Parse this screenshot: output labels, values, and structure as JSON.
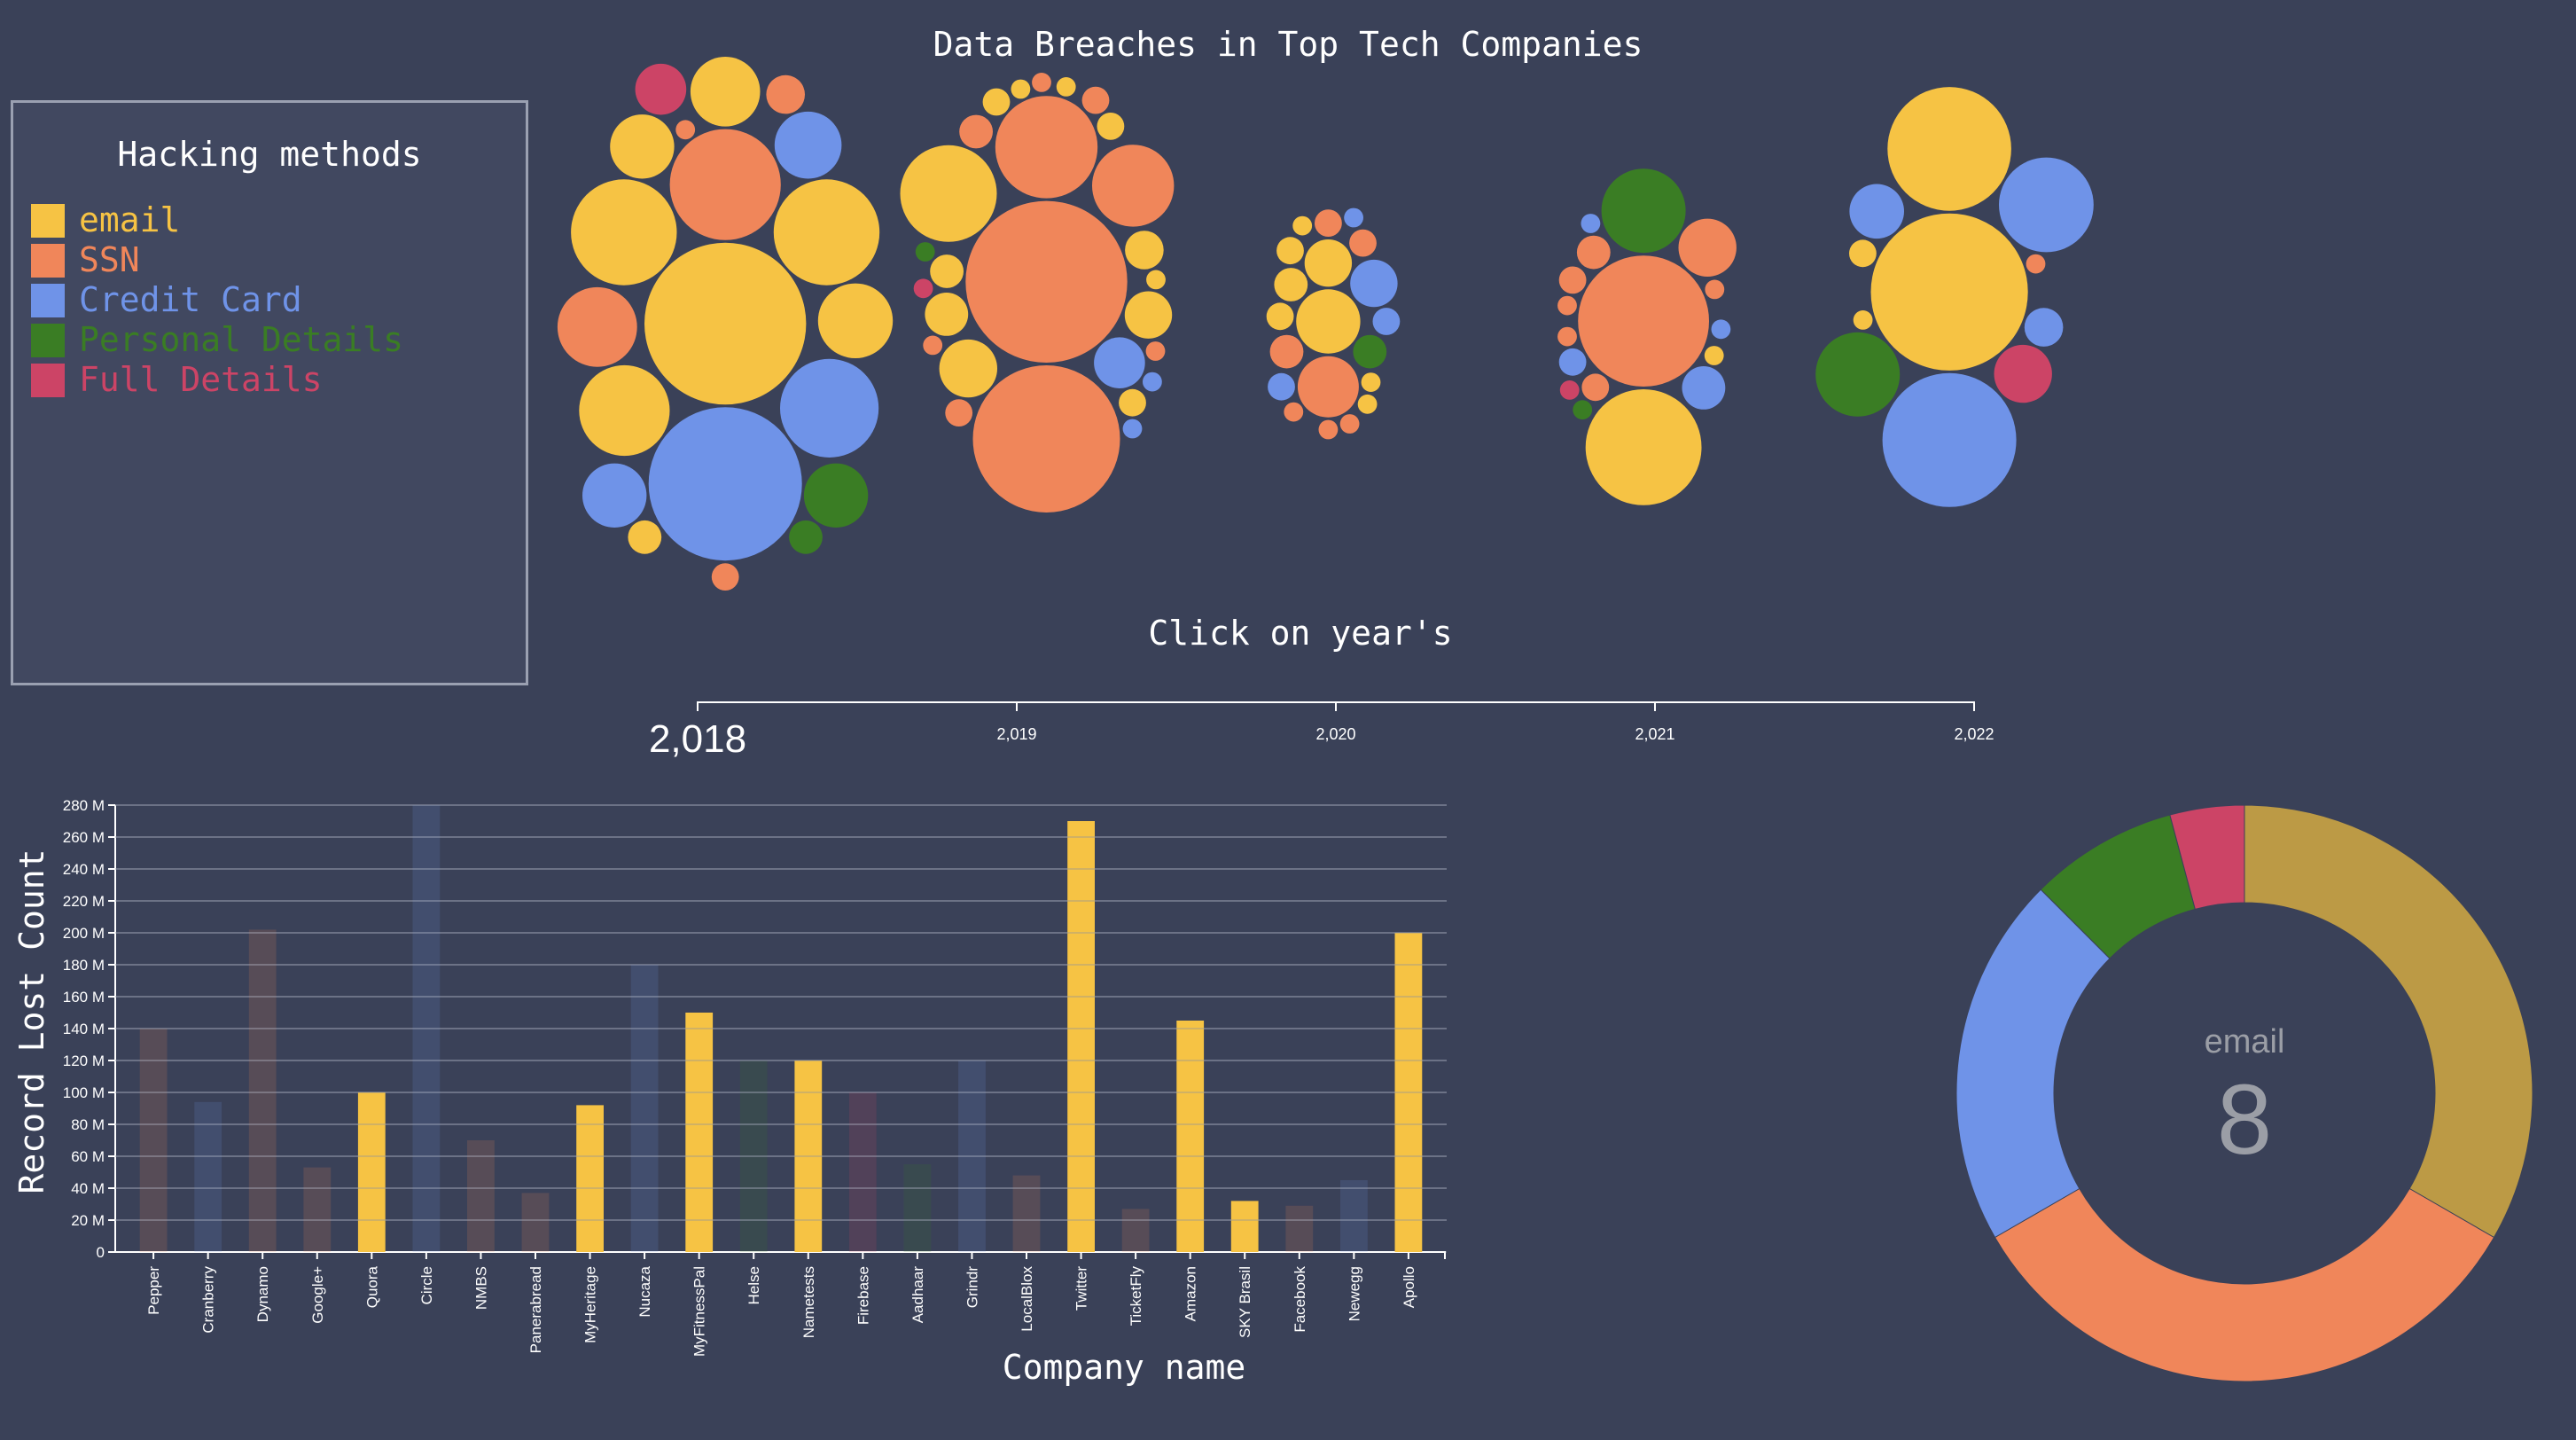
{
  "page": {
    "title": "Data Breaches in Top Tech Companies"
  },
  "legend": {
    "title": "Hacking methods",
    "items": [
      {
        "label": "email",
        "color": "#f6c344"
      },
      {
        "label": "SSN",
        "color": "#f0865a"
      },
      {
        "label": "Credit Card",
        "color": "#6f93e8"
      },
      {
        "label": "Personal Details",
        "color": "#3a7d24"
      },
      {
        "label": "Full Details",
        "color": "#cc4466"
      }
    ]
  },
  "timeline": {
    "hint": "Click on year's",
    "years": [
      "2,018",
      "2,019",
      "2,020",
      "2,021",
      "2,022"
    ],
    "selected": "2,018"
  },
  "chart_data": [
    {
      "type": "scatter",
      "title": "",
      "subtype": "packed-bubble",
      "groups": [
        {
          "year": "2,018",
          "bubbles": [
            {
              "method": "email",
              "size": 70
            },
            {
              "method": "email",
              "size": 30
            },
            {
              "method": "email",
              "size": 30
            },
            {
              "method": "email",
              "size": 22
            },
            {
              "method": "email",
              "size": 15
            },
            {
              "method": "email",
              "size": 13
            },
            {
              "method": "email",
              "size": 11
            },
            {
              "method": "email",
              "size": 3
            },
            {
              "method": "SSN",
              "size": 33
            },
            {
              "method": "SSN",
              "size": 17
            },
            {
              "method": "SSN",
              "size": 4
            },
            {
              "method": "SSN",
              "size": 2
            },
            {
              "method": "SSN",
              "size": 1
            },
            {
              "method": "Credit Card",
              "size": 63
            },
            {
              "method": "Credit Card",
              "size": 26
            },
            {
              "method": "Credit Card",
              "size": 12
            },
            {
              "method": "Credit Card",
              "size": 11
            },
            {
              "method": "Personal Details",
              "size": 11
            },
            {
              "method": "Personal Details",
              "size": 3
            },
            {
              "method": "Full Details",
              "size": 7
            }
          ]
        },
        {
          "year": "2,019",
          "bubbles": [
            {
              "method": "email",
              "size": 25
            },
            {
              "method": "email",
              "size": 9
            },
            {
              "method": "email",
              "size": 6
            },
            {
              "method": "email",
              "size": 5
            },
            {
              "method": "email",
              "size": 4
            },
            {
              "method": "email",
              "size": 3
            },
            {
              "method": "email",
              "size": 2
            },
            {
              "method": "email",
              "size": 2
            },
            {
              "method": "email",
              "size": 2
            },
            {
              "method": "email",
              "size": 1
            },
            {
              "method": "email",
              "size": 1
            },
            {
              "method": "email",
              "size": 1
            },
            {
              "method": "SSN",
              "size": 70
            },
            {
              "method": "SSN",
              "size": 58
            },
            {
              "method": "SSN",
              "size": 28
            },
            {
              "method": "SSN",
              "size": 18
            },
            {
              "method": "SSN",
              "size": 3
            },
            {
              "method": "SSN",
              "size": 2
            },
            {
              "method": "SSN",
              "size": 2
            },
            {
              "method": "SSN",
              "size": 1
            },
            {
              "method": "SSN",
              "size": 1
            },
            {
              "method": "SSN",
              "size": 1
            },
            {
              "method": "Credit Card",
              "size": 7
            },
            {
              "method": "Credit Card",
              "size": 1
            },
            {
              "method": "Credit Card",
              "size": 1
            },
            {
              "method": "Personal Details",
              "size": 1
            },
            {
              "method": "Full Details",
              "size": 1
            }
          ]
        },
        {
          "year": "2,020",
          "bubbles": [
            {
              "method": "email",
              "size": 11
            },
            {
              "method": "email",
              "size": 6
            },
            {
              "method": "email",
              "size": 3
            },
            {
              "method": "email",
              "size": 2
            },
            {
              "method": "email",
              "size": 2
            },
            {
              "method": "email",
              "size": 1
            },
            {
              "method": "email",
              "size": 1
            },
            {
              "method": "email",
              "size": 1
            },
            {
              "method": "SSN",
              "size": 10
            },
            {
              "method": "SSN",
              "size": 3
            },
            {
              "method": "SSN",
              "size": 2
            },
            {
              "method": "SSN",
              "size": 2
            },
            {
              "method": "SSN",
              "size": 1
            },
            {
              "method": "SSN",
              "size": 1
            },
            {
              "method": "SSN",
              "size": 1
            },
            {
              "method": "Credit Card",
              "size": 6
            },
            {
              "method": "Credit Card",
              "size": 2
            },
            {
              "method": "Credit Card",
              "size": 2
            },
            {
              "method": "Credit Card",
              "size": 1
            },
            {
              "method": "Personal Details",
              "size": 3
            }
          ]
        },
        {
          "year": "2,021",
          "bubbles": [
            {
              "method": "email",
              "size": 36
            },
            {
              "method": "email",
              "size": 1
            },
            {
              "method": "SSN",
              "size": 46
            },
            {
              "method": "SSN",
              "size": 9
            },
            {
              "method": "SSN",
              "size": 3
            },
            {
              "method": "SSN",
              "size": 2
            },
            {
              "method": "SSN",
              "size": 2
            },
            {
              "method": "SSN",
              "size": 1
            },
            {
              "method": "SSN",
              "size": 1
            },
            {
              "method": "SSN",
              "size": 1
            },
            {
              "method": "Credit Card",
              "size": 5
            },
            {
              "method": "Credit Card",
              "size": 2
            },
            {
              "method": "Credit Card",
              "size": 1
            },
            {
              "method": "Credit Card",
              "size": 1
            },
            {
              "method": "Personal Details",
              "size": 19
            },
            {
              "method": "Personal Details",
              "size": 1
            },
            {
              "method": "Full Details",
              "size": 1
            }
          ]
        },
        {
          "year": "2,022",
          "bubbles": [
            {
              "method": "email",
              "size": 66
            },
            {
              "method": "email",
              "size": 41
            },
            {
              "method": "email",
              "size": 2
            },
            {
              "method": "email",
              "size": 1
            },
            {
              "method": "SSN",
              "size": 1
            },
            {
              "method": "Credit Card",
              "size": 48
            },
            {
              "method": "Credit Card",
              "size": 24
            },
            {
              "method": "Credit Card",
              "size": 8
            },
            {
              "method": "Credit Card",
              "size": 4
            },
            {
              "method": "Personal Details",
              "size": 19
            },
            {
              "method": "Full Details",
              "size": 9
            }
          ]
        }
      ]
    },
    {
      "type": "bar",
      "title": "",
      "xlabel": "Company name",
      "ylabel": "Record Lost Count",
      "ylim": [
        0,
        280000000
      ],
      "yticks": [
        "0",
        "20 M",
        "40 M",
        "60 M",
        "80 M",
        "100 M",
        "120 M",
        "140 M",
        "160 M",
        "180 M",
        "200 M",
        "220 M",
        "240 M",
        "260 M",
        "280 M"
      ],
      "categories": [
        "Pepper",
        "Cranberry",
        "Dynamo",
        "Google+",
        "Quora",
        "Circle",
        "NMBS",
        "Panerabread",
        "MyHeritage",
        "Nucaza",
        "MyFitnessPal",
        "Helse",
        "Nametests",
        "Firebase",
        "Aadhaar",
        "Grindr",
        "LocalBlox",
        "Twitter",
        "TicketFly",
        "Amazon",
        "SKY Brasil",
        "Facebook",
        "Newegg",
        "Apollo"
      ],
      "values": [
        140000000,
        94000000,
        202000000,
        53000000,
        100000000,
        280000000,
        70000000,
        37000000,
        92000000,
        180000000,
        150000000,
        120000000,
        120000000,
        100000000,
        55000000,
        120000000,
        48000000,
        270000000,
        27000000,
        145000000,
        32000000,
        29000000,
        45000000,
        200000000
      ],
      "methods": [
        "SSN",
        "Credit Card",
        "SSN",
        "SSN",
        "email",
        "Credit Card",
        "SSN",
        "SSN",
        "email",
        "Credit Card",
        "email",
        "Personal Details",
        "email",
        "Full Details",
        "Personal Details",
        "Credit Card",
        "SSN",
        "email",
        "SSN",
        "email",
        "email",
        "SSN",
        "Credit Card",
        "email"
      ],
      "highlighted_method": "email"
    },
    {
      "type": "pie",
      "title": "",
      "donut": true,
      "slices": [
        {
          "label": "email",
          "value": 8,
          "color": "#bc9a45"
        },
        {
          "label": "SSN",
          "value": 8,
          "color": "#f0865a"
        },
        {
          "label": "Credit Card",
          "value": 5,
          "color": "#6f93e8"
        },
        {
          "label": "Personal Details",
          "value": 2,
          "color": "#3a7d24"
        },
        {
          "label": "Full Details",
          "value": 1,
          "color": "#cc4466"
        }
      ],
      "center_label": "email",
      "center_value": "8"
    }
  ]
}
